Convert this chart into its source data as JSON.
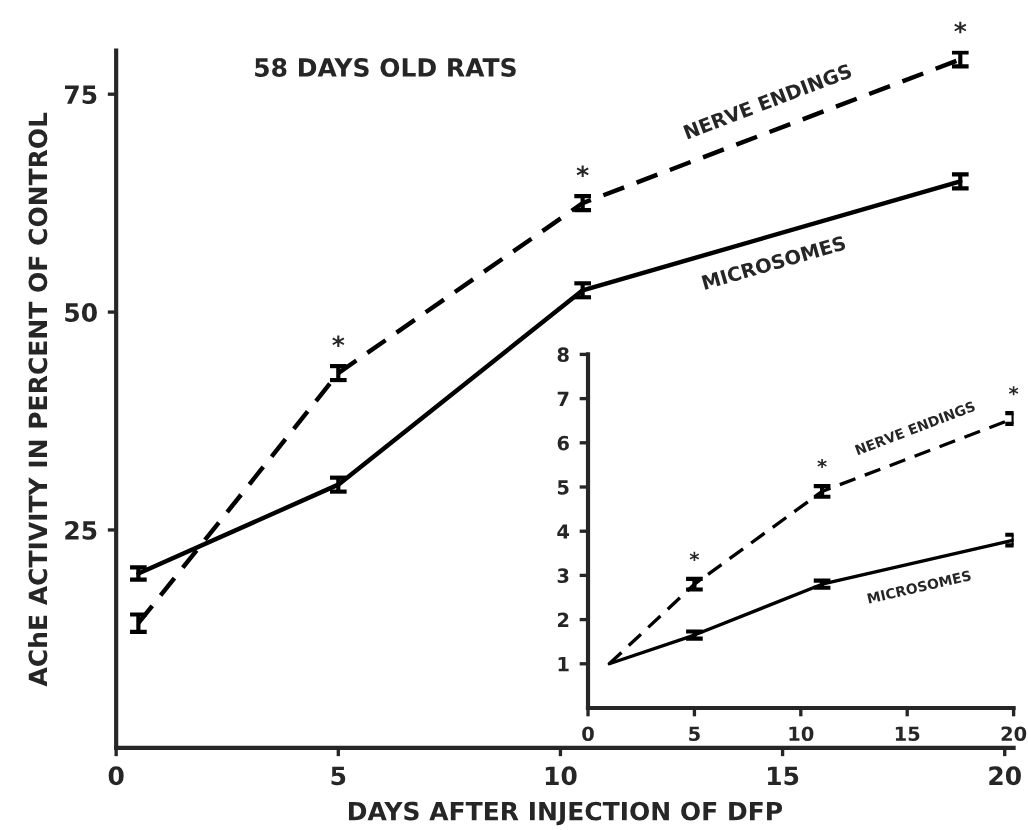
{
  "chart_data": [
    {
      "type": "line",
      "title": "58 DAYS OLD RATS",
      "xlabel": "DAYS AFTER INJECTION OF DFP",
      "ylabel": "AChE ACTIVITY IN PERCENT OF CONTROL",
      "x": [
        0.5,
        5,
        10.5,
        19
      ],
      "series": [
        {
          "name": "NERVE ENDINGS",
          "color": "#000000",
          "line_style": "dashed",
          "values": [
            14.3,
            43,
            62.5,
            79
          ],
          "errors": [
            1,
            0.8,
            0.8,
            0.8
          ]
        },
        {
          "name": "MICROSOMES",
          "color": "#000000",
          "line_style": "solid",
          "values": [
            20,
            30.2,
            52.5,
            65
          ],
          "errors": [
            0.7,
            0.8,
            0.8,
            0.8
          ]
        }
      ],
      "xlim": [
        0,
        20.2
      ],
      "ylim": [
        0,
        80
      ],
      "xticks": [
        0,
        5,
        10,
        15,
        20
      ],
      "yticks": [
        25,
        50,
        75
      ],
      "annotations": [
        {
          "text": "*",
          "x": 5,
          "y": 43
        },
        {
          "text": "*",
          "x": 10.5,
          "y": 62.5
        },
        {
          "text": "*",
          "x": 19,
          "y": 79
        }
      ],
      "grid": false,
      "legend": false,
      "marker": "none"
    },
    {
      "type": "line",
      "x": [
        1,
        5,
        11,
        20
      ],
      "series": [
        {
          "name": "NERVE ENDINGS",
          "color": "#000000",
          "line_style": "dashed",
          "values": [
            1,
            2.8,
            4.9,
            6.55
          ],
          "errors": [
            null,
            0.12,
            0.12,
            0.12
          ]
        },
        {
          "name": "MICROSOMES",
          "color": "#000000",
          "line_style": "solid",
          "values": [
            1,
            1.65,
            2.8,
            3.8
          ],
          "errors": [
            null,
            0.08,
            0.08,
            0.12
          ]
        }
      ],
      "xlim": [
        0,
        20
      ],
      "ylim": [
        0,
        8
      ],
      "xticks": [
        0,
        5,
        10,
        15,
        20
      ],
      "yticks": [
        1,
        2,
        3,
        4,
        5,
        6,
        7,
        8
      ],
      "annotations": [
        {
          "text": "*",
          "x": 5,
          "y": 2.8
        },
        {
          "text": "*",
          "x": 11,
          "y": 4.9
        },
        {
          "text": "*",
          "x": 20,
          "y": 6.55
        }
      ],
      "grid": false,
      "legend": false,
      "marker": "none"
    }
  ]
}
